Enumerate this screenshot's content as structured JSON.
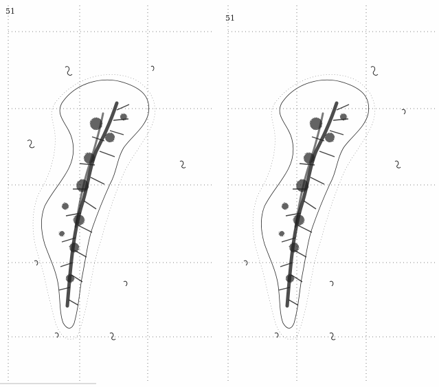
{
  "figure": {
    "background_color": "#fefefe",
    "ink_color": "#1a1a1a",
    "grid_color": "#555555",
    "panels": [
      {
        "panel_id": "left",
        "corner_mark": "51"
      },
      {
        "panel_id": "right",
        "corner_mark": "51"
      }
    ]
  }
}
